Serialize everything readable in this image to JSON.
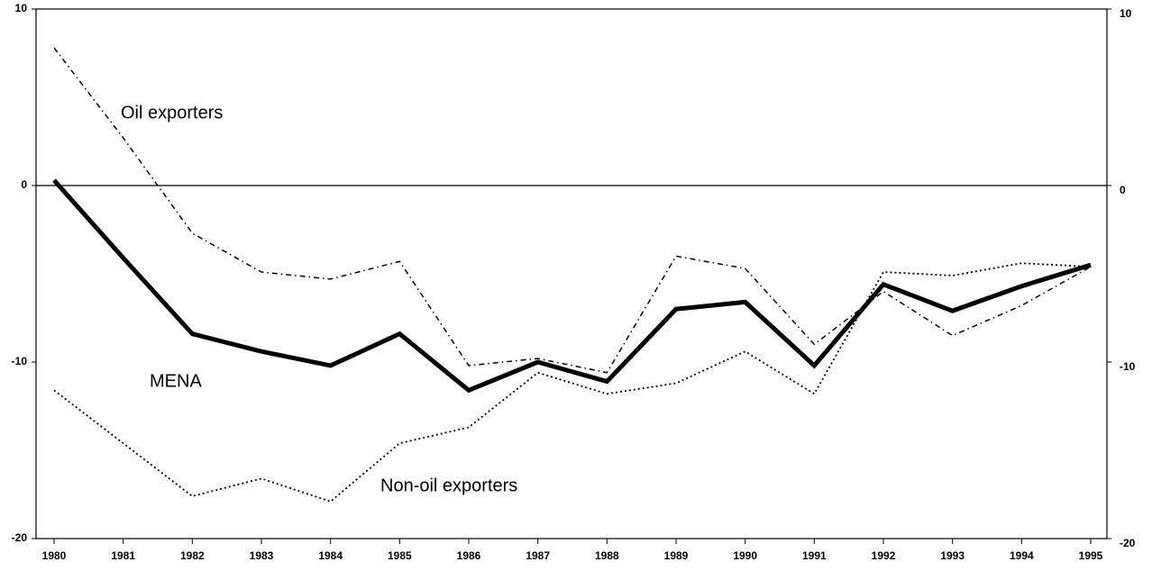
{
  "chart_data": {
    "type": "line",
    "categories": [
      "1980",
      "1981",
      "1982",
      "1983",
      "1984",
      "1985",
      "1986",
      "1987",
      "1988",
      "1989",
      "1990",
      "1991",
      "1992",
      "1993",
      "1994",
      "1995"
    ],
    "series": [
      {
        "name": "MENA",
        "color": "#000000",
        "linestyle": "solid",
        "linewidth": 5,
        "values": [
          0.3,
          -4.1,
          -8.4,
          -9.4,
          -10.2,
          -8.4,
          -11.6,
          -10.0,
          -11.1,
          -7.0,
          -6.6,
          -10.2,
          -5.6,
          -7.1,
          -5.7,
          -4.5
        ]
      },
      {
        "name": "Oil exporters",
        "color": "#000000",
        "linestyle": "dashdot",
        "linewidth": 1.5,
        "values": [
          7.8,
          2.7,
          -2.7,
          -4.9,
          -5.3,
          -4.3,
          -10.2,
          -9.8,
          -10.6,
          -4.0,
          -4.7,
          -9.0,
          -6.0,
          -8.5,
          -6.8,
          -4.6
        ]
      },
      {
        "name": "Non-oil exporters",
        "color": "#000000",
        "linestyle": "dotted",
        "linewidth": 1.8,
        "values": [
          -11.6,
          -14.6,
          -17.6,
          -16.6,
          -17.9,
          -14.6,
          -13.7,
          -10.6,
          -11.8,
          -11.2,
          -9.4,
          -11.8,
          -4.9,
          -5.1,
          -4.4,
          -4.6
        ]
      }
    ],
    "ylim": [
      -20,
      10
    ],
    "yticks": [
      -20,
      -10,
      0,
      10
    ],
    "y2lim": [
      -20,
      10
    ],
    "y2ticks": [
      -20,
      -10,
      0,
      10
    ],
    "zero_line": true
  }
}
